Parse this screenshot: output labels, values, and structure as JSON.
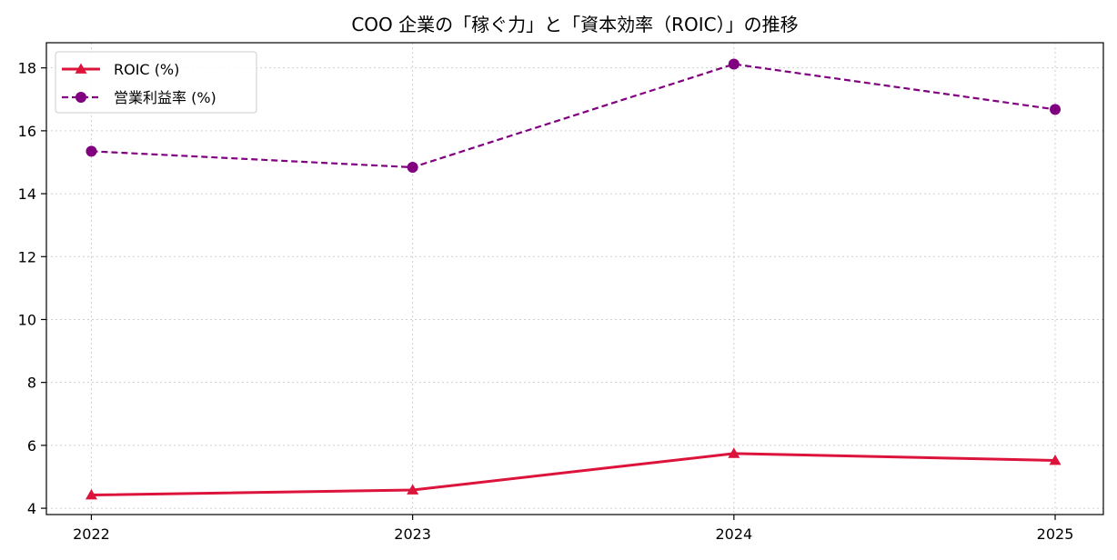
{
  "chart_data": {
    "type": "line",
    "title": "COO 企業の「稼ぐ力」と「資本効率（ROIC）」の推移",
    "xlabel": "",
    "ylabel": "",
    "categories": [
      "2022",
      "2023",
      "2024",
      "2025"
    ],
    "xlim": [
      2021.86,
      2025.15
    ],
    "ylim": [
      3.8,
      18.8
    ],
    "yticks": [
      4,
      6,
      8,
      10,
      12,
      14,
      16,
      18
    ],
    "grid": true,
    "legend_position": "upper-left",
    "series": [
      {
        "name": "ROIC (%)",
        "values": [
          4.42,
          4.58,
          5.74,
          5.52
        ],
        "color": "#dc143c",
        "line_style": "solid",
        "marker": "triangle"
      },
      {
        "name": "営業利益率 (%)",
        "values": [
          15.35,
          14.84,
          18.12,
          16.68
        ],
        "color": "#800080",
        "line_style": "dashed",
        "marker": "circle"
      }
    ]
  }
}
